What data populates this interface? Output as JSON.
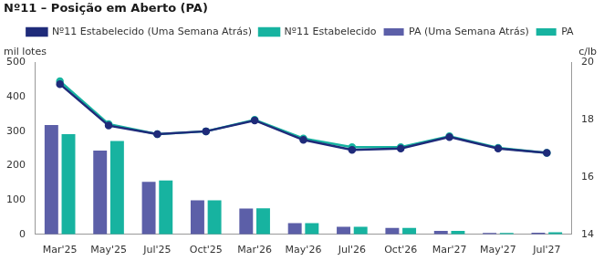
{
  "chart_data": {
    "type": "bar",
    "title": "Nº11 – Posição em Aberto (PA)",
    "ylabel": "mil lotes",
    "y2label": "c/lb",
    "categories": [
      "Mar'25",
      "May'25",
      "Jul'25",
      "Oct'25",
      "Mar'26",
      "May'26",
      "Jul'26",
      "Oct'26",
      "Mar'27",
      "May'27",
      "Jul'27"
    ],
    "series": [
      {
        "name": "PA (Uma Semana Atrás)",
        "type": "bar",
        "color": "#5c5fa8",
        "values": [
          318,
          244,
          153,
          99,
          75,
          33,
          22,
          19,
          10,
          4,
          5
        ]
      },
      {
        "name": "PA",
        "type": "bar",
        "color": "#17b3a0",
        "values": [
          292,
          272,
          157,
          99,
          76,
          33,
          22,
          19,
          10,
          4,
          6
        ]
      },
      {
        "name": "Nº11 Estabelecido (Uma Semana Atrás)",
        "type": "line",
        "axis": "y2",
        "marker": "circle",
        "color": "#1f2b7a",
        "values": [
          19.25,
          17.8,
          17.5,
          17.6,
          17.98,
          17.3,
          16.95,
          17.0,
          17.4,
          17.0,
          16.85
        ]
      },
      {
        "name": "Nº11 Estabelecido",
        "type": "line",
        "axis": "y2",
        "marker": "circle",
        "color": "#17b3a0",
        "values": [
          19.35,
          17.85,
          17.5,
          17.6,
          18.0,
          17.35,
          17.05,
          17.05,
          17.43,
          17.02,
          16.85
        ]
      }
    ],
    "ylim": [
      0,
      500
    ],
    "yticks": [
      0,
      100,
      200,
      300,
      400,
      500
    ],
    "y2lim": [
      14,
      20
    ],
    "y2ticks": [
      14,
      16,
      18,
      20
    ],
    "grid": false,
    "legend": "top"
  }
}
